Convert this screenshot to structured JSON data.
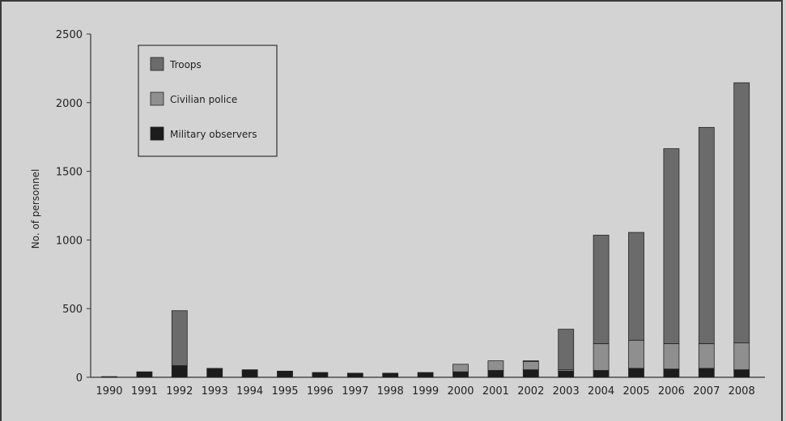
{
  "chart_data": {
    "type": "bar",
    "stacked": true,
    "title": "",
    "xlabel": "",
    "ylabel": "No. of personnel",
    "ylim": [
      0,
      2500
    ],
    "yticks": [
      0,
      500,
      1000,
      1500,
      2000,
      2500
    ],
    "grid": false,
    "legend_position": "top-left",
    "categories": [
      "1990",
      "1991",
      "1992",
      "1993",
      "1994",
      "1995",
      "1996",
      "1997",
      "1998",
      "1999",
      "2000",
      "2001",
      "2002",
      "2003",
      "2004",
      "2005",
      "2006",
      "2007",
      "2008"
    ],
    "series": [
      {
        "name": "Military observers",
        "color": "#1c1c1c",
        "values": [
          5,
          40,
          85,
          60,
          55,
          45,
          35,
          30,
          30,
          35,
          40,
          50,
          55,
          45,
          50,
          65,
          60,
          65,
          55
        ]
      },
      {
        "name": "Civilian police",
        "color": "#8f8f8f",
        "values": [
          0,
          0,
          0,
          0,
          0,
          0,
          0,
          0,
          0,
          0,
          55,
          70,
          60,
          10,
          195,
          205,
          185,
          180,
          195
        ]
      },
      {
        "name": "Troops",
        "color": "#6b6b6b",
        "values": [
          0,
          0,
          400,
          5,
          0,
          0,
          0,
          0,
          0,
          0,
          0,
          0,
          5,
          295,
          790,
          785,
          1420,
          1575,
          1895
        ]
      }
    ],
    "legend_order": [
      "Troops",
      "Civilian police",
      "Military observers"
    ]
  }
}
